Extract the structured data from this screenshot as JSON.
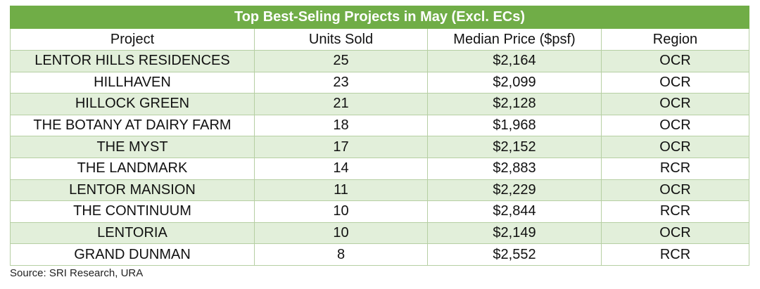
{
  "table": {
    "title": "Top Best-Seling Projects in May (Excl. ECs)",
    "columns": [
      "Project",
      "Units Sold",
      "Median Price ($psf)",
      "Region"
    ],
    "rows": [
      [
        "LENTOR HILLS RESIDENCES",
        "25",
        "$2,164",
        "OCR"
      ],
      [
        "HILLHAVEN",
        "23",
        "$2,099",
        "OCR"
      ],
      [
        "HILLOCK GREEN",
        "21",
        "$2,128",
        "OCR"
      ],
      [
        "THE BOTANY AT DAIRY FARM",
        "18",
        "$1,968",
        "OCR"
      ],
      [
        "THE MYST",
        "17",
        "$2,152",
        "OCR"
      ],
      [
        "THE LANDMARK",
        "14",
        "$2,883",
        "RCR"
      ],
      [
        "LENTOR MANSION",
        "11",
        "$2,229",
        "OCR"
      ],
      [
        "THE CONTINUUM",
        "10",
        "$2,844",
        "RCR"
      ],
      [
        "LENTORIA",
        "10",
        "$2,149",
        "OCR"
      ],
      [
        "GRAND DUNMAN",
        "8",
        "$2,552",
        "RCR"
      ]
    ],
    "header_color": "#70ad47",
    "stripe_color": "#e2efda"
  },
  "source": "Source: SRI Research, URA"
}
